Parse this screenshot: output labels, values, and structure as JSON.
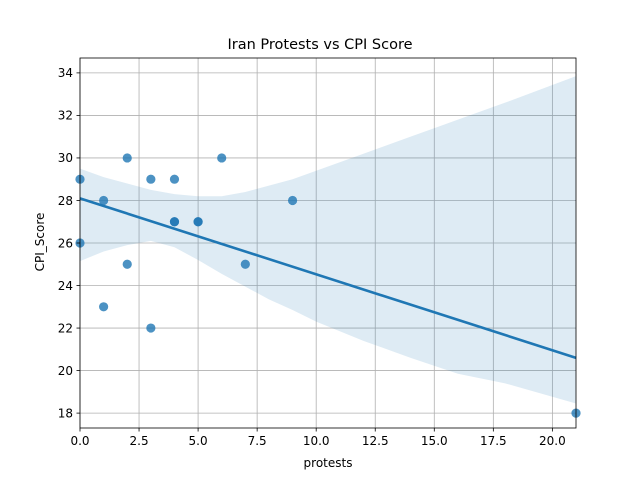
{
  "chart_data": {
    "type": "scatter",
    "title": "Iran Protests vs CPI Score",
    "xlabel": "protests",
    "ylabel": "CPI_Score",
    "xlim": [
      0,
      21
    ],
    "ylim": [
      17.3,
      34.7
    ],
    "x_ticks": [
      "0.0",
      "2.5",
      "5.0",
      "7.5",
      "10.0",
      "12.5",
      "15.0",
      "17.5",
      "20.0"
    ],
    "x_tick_values": [
      0,
      2.5,
      5,
      7.5,
      10,
      12.5,
      15,
      17.5,
      20
    ],
    "y_ticks": [
      "18",
      "20",
      "22",
      "24",
      "26",
      "28",
      "30",
      "32",
      "34"
    ],
    "y_tick_values": [
      18,
      20,
      22,
      24,
      26,
      28,
      30,
      32,
      34
    ],
    "grid": true,
    "points": [
      {
        "x": 0,
        "y": 29
      },
      {
        "x": 0,
        "y": 26
      },
      {
        "x": 1,
        "y": 28
      },
      {
        "x": 1,
        "y": 23
      },
      {
        "x": 2,
        "y": 30
      },
      {
        "x": 2,
        "y": 25
      },
      {
        "x": 3,
        "y": 29
      },
      {
        "x": 3,
        "y": 22
      },
      {
        "x": 4,
        "y": 29
      },
      {
        "x": 4,
        "y": 27
      },
      {
        "x": 4,
        "y": 27
      },
      {
        "x": 5,
        "y": 27
      },
      {
        "x": 5,
        "y": 27
      },
      {
        "x": 6,
        "y": 30
      },
      {
        "x": 7,
        "y": 25
      },
      {
        "x": 9,
        "y": 28
      },
      {
        "x": 21,
        "y": 18
      }
    ],
    "regression_line": {
      "x": [
        0,
        21
      ],
      "y": [
        28.1,
        20.6
      ]
    },
    "confidence_band": {
      "x": [
        0,
        1,
        2,
        3,
        4,
        5,
        6,
        7,
        8,
        9,
        10,
        12,
        14,
        16,
        18,
        21
      ],
      "upper": [
        29.5,
        29.1,
        28.8,
        28.5,
        28.3,
        28.2,
        28.2,
        28.4,
        28.7,
        29.0,
        29.4,
        30.2,
        31.0,
        31.8,
        32.6,
        33.85
      ],
      "lower": [
        25.15,
        25.6,
        25.9,
        26.1,
        25.8,
        25.2,
        24.55,
        23.95,
        23.35,
        22.85,
        22.3,
        21.4,
        20.6,
        19.85,
        19.4,
        18.45
      ]
    },
    "colors": {
      "points": "#1f77b4",
      "line": "#1f77b4",
      "band": "#1f77b4",
      "grid": "#b0b0b0"
    }
  }
}
